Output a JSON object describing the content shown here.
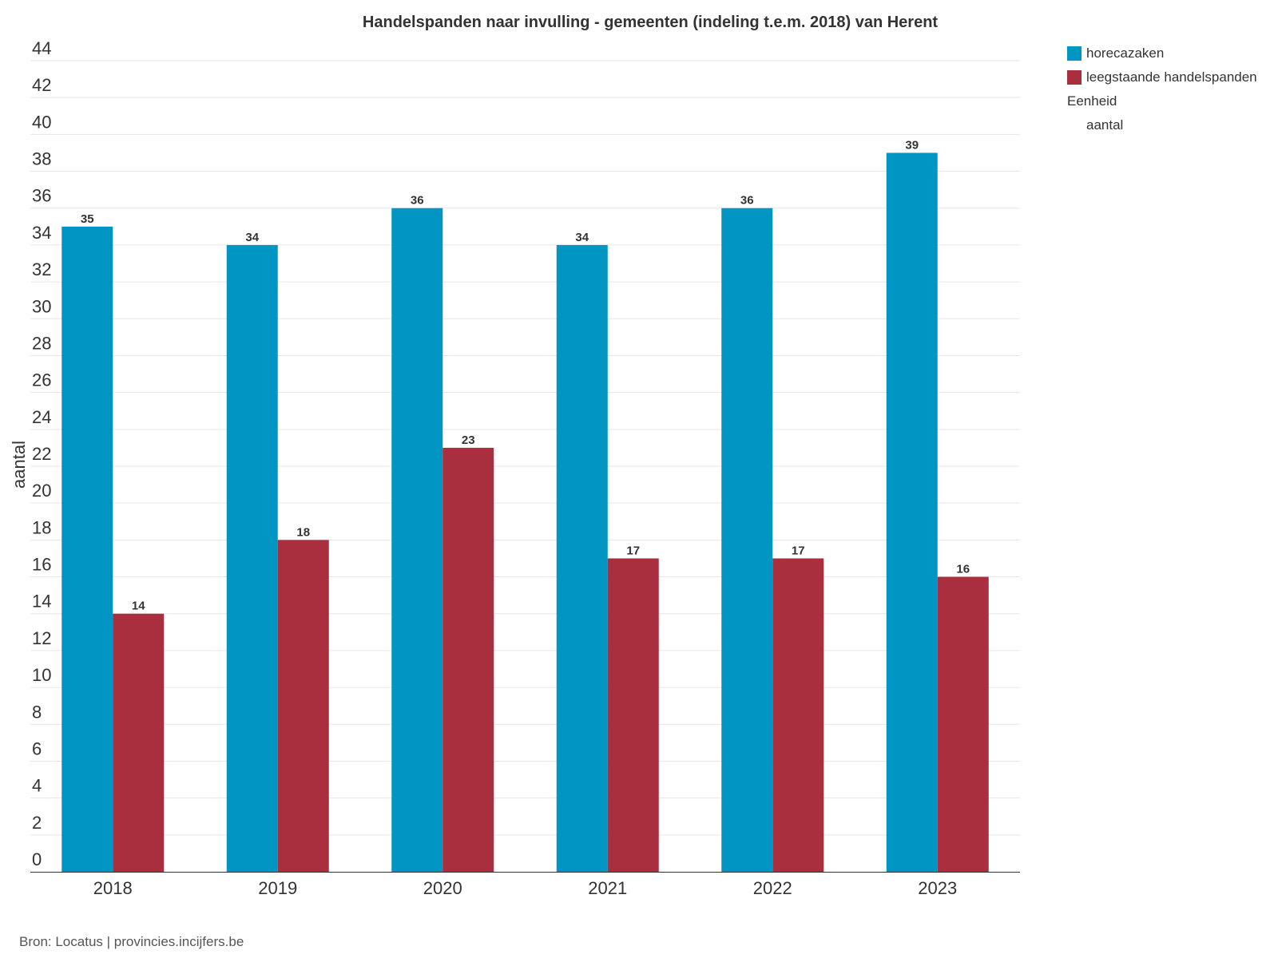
{
  "chart_data": {
    "type": "bar",
    "title": "Handelspanden naar invulling - gemeenten (indeling t.e.m. 2018) van Herent",
    "xlabel": "",
    "ylabel": "aantal",
    "categories": [
      "2018",
      "2019",
      "2020",
      "2021",
      "2022",
      "2023"
    ],
    "series": [
      {
        "name": "horecazaken",
        "color": "#0095c2",
        "values": [
          35,
          34,
          36,
          34,
          36,
          39
        ]
      },
      {
        "name": "leegstaande handelspanden",
        "color": "#a92f3e",
        "values": [
          14,
          18,
          23,
          17,
          17,
          16
        ]
      }
    ],
    "ylim": [
      0,
      44
    ],
    "yticks": [
      0,
      2,
      4,
      6,
      8,
      10,
      12,
      14,
      16,
      18,
      20,
      22,
      24,
      26,
      28,
      30,
      32,
      34,
      36,
      38,
      40,
      42,
      44
    ],
    "grid": true,
    "legend_position": "top-right"
  },
  "legend": {
    "unit_title": "Eenheid",
    "unit_value": "aantal"
  },
  "source": "Bron: Locatus | provincies.incijfers.be"
}
